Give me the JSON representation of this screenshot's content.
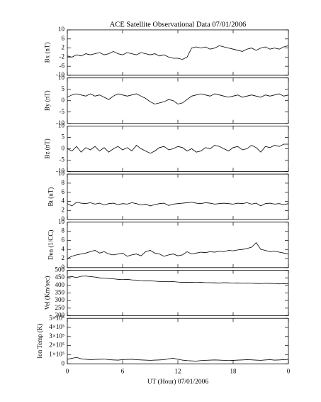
{
  "chart_data": [
    {
      "type": "line",
      "title": "ACE Satellite Observational Data   07/01/2006",
      "ylabel": "Bx (nT)",
      "color": "#000000",
      "x": [
        0,
        0.5,
        1,
        1.5,
        2,
        2.5,
        3,
        3.5,
        4,
        4.5,
        5,
        5.5,
        6,
        6.5,
        7,
        7.5,
        8,
        8.5,
        9,
        9.5,
        10,
        10.5,
        11,
        11.5,
        12,
        12.5,
        13,
        13.5,
        14,
        14.5,
        15,
        15.5,
        16,
        16.5,
        17,
        17.5,
        18,
        18.5,
        19,
        19.5,
        20,
        20.5,
        21,
        21.5,
        22,
        22.5,
        23,
        23.5,
        24
      ],
      "values": [
        -1.5,
        -2,
        -1,
        -1.5,
        -0.5,
        -1,
        -0.5,
        0,
        -1,
        -0.5,
        0.5,
        -0.5,
        -1,
        0,
        -0.5,
        -1,
        0,
        -0.5,
        -1,
        -0.5,
        -1.5,
        -1,
        -2,
        -2.5,
        -2.5,
        -3,
        -2,
        2,
        2.5,
        2,
        2.5,
        1.5,
        2,
        3,
        2.5,
        2,
        1.5,
        1,
        0.5,
        1.5,
        2,
        1,
        2,
        2.5,
        1.5,
        2,
        1.5,
        2.5,
        3
      ],
      "xlim": [
        0,
        24
      ],
      "ylim": [
        -10,
        10
      ],
      "yticks": [
        -10,
        -6,
        -2,
        2,
        6,
        10
      ]
    },
    {
      "type": "line",
      "ylabel": "By (nT)",
      "color": "#000000",
      "x": [
        0,
        0.5,
        1,
        1.5,
        2,
        2.5,
        3,
        3.5,
        4,
        4.5,
        5,
        5.5,
        6,
        6.5,
        7,
        7.5,
        8,
        8.5,
        9,
        9.5,
        10,
        10.5,
        11,
        11.5,
        12,
        12.5,
        13,
        13.5,
        14,
        14.5,
        15,
        15.5,
        16,
        16.5,
        17,
        17.5,
        18,
        18.5,
        19,
        19.5,
        20,
        20.5,
        21,
        21.5,
        22,
        22.5,
        23,
        23.5,
        24
      ],
      "values": [
        1.5,
        2.5,
        3,
        2.5,
        2,
        3,
        2,
        2.5,
        1.5,
        0.5,
        2,
        3,
        2.5,
        2,
        2.5,
        3,
        2,
        1,
        -0.5,
        -1.5,
        -1,
        -0.5,
        0.5,
        0,
        -1.5,
        -1,
        0.5,
        2,
        2.5,
        3,
        2.5,
        2,
        3,
        2.5,
        2,
        1.5,
        2,
        2.5,
        1.5,
        2,
        2.5,
        2,
        1.5,
        2.5,
        2,
        2.5,
        3,
        2,
        2.5
      ],
      "xlim": [
        0,
        24
      ],
      "ylim": [
        -10,
        10
      ],
      "yticks": [
        -10,
        -5,
        0,
        5,
        10
      ]
    },
    {
      "type": "line",
      "ylabel": "Bz (nT)",
      "color": "#000000",
      "x": [
        0,
        0.5,
        1,
        1.5,
        2,
        2.5,
        3,
        3.5,
        4,
        4.5,
        5,
        5.5,
        6,
        6.5,
        7,
        7.5,
        8,
        8.5,
        9,
        9.5,
        10,
        10.5,
        11,
        11.5,
        12,
        12.5,
        13,
        13.5,
        14,
        14.5,
        15,
        15.5,
        16,
        16.5,
        17,
        17.5,
        18,
        18.5,
        19,
        19.5,
        20,
        20.5,
        21,
        21.5,
        22,
        22.5,
        23,
        23.5,
        24
      ],
      "values": [
        0,
        -1,
        1,
        -1.5,
        0.5,
        -0.5,
        1,
        -1,
        0.5,
        -1.5,
        0,
        1,
        -0.5,
        0.5,
        -1,
        1.5,
        0,
        -1,
        -2,
        -1,
        0.5,
        1,
        -0.5,
        0,
        1,
        0.5,
        -1,
        0,
        -1.5,
        -1,
        0.5,
        0,
        1.5,
        1,
        0,
        -1,
        0.5,
        1,
        -0.5,
        0,
        1.5,
        0.5,
        -1.5,
        1,
        0.5,
        1.5,
        1,
        2,
        2
      ],
      "xlim": [
        0,
        24
      ],
      "ylim": [
        -10,
        10
      ],
      "yticks": [
        -10,
        -5,
        0,
        5,
        10
      ]
    },
    {
      "type": "line",
      "ylabel": "Bt (nT)",
      "color": "#000000",
      "x": [
        0,
        0.5,
        1,
        1.5,
        2,
        2.5,
        3,
        3.5,
        4,
        4.5,
        5,
        5.5,
        6,
        6.5,
        7,
        7.5,
        8,
        8.5,
        9,
        9.5,
        10,
        10.5,
        11,
        11.5,
        12,
        12.5,
        13,
        13.5,
        14,
        14.5,
        15,
        15.5,
        16,
        16.5,
        17,
        17.5,
        18,
        18.5,
        19,
        19.5,
        20,
        20.5,
        21,
        21.5,
        22,
        22.5,
        23,
        23.5,
        24
      ],
      "values": [
        3.5,
        3,
        3.8,
        3.6,
        3.5,
        3.7,
        3.4,
        3.6,
        3.2,
        3.5,
        3.6,
        3.3,
        3.5,
        3.4,
        3.7,
        3.5,
        3.2,
        3.4,
        3.0,
        3.3,
        3.5,
        3.6,
        3.1,
        3.4,
        3.5,
        3.6,
        3.7,
        3.8,
        3.6,
        3.5,
        3.7,
        3.6,
        3.4,
        3.5,
        3.6,
        3.5,
        3.4,
        3.6,
        3.5,
        3.7,
        3.4,
        3.6,
        3.0,
        3.5,
        3.6,
        3.4,
        3.5,
        3.3,
        3.5
      ],
      "xlim": [
        0,
        24
      ],
      "ylim": [
        0,
        10
      ],
      "yticks": [
        0,
        2,
        4,
        6,
        8,
        10
      ]
    },
    {
      "type": "line",
      "ylabel": "Den (1/CC)",
      "color": "#000000",
      "x": [
        0,
        0.5,
        1,
        1.5,
        2,
        2.5,
        3,
        3.5,
        4,
        4.5,
        5,
        5.5,
        6,
        6.5,
        7,
        7.5,
        8,
        8.5,
        9,
        9.5,
        10,
        10.5,
        11,
        11.5,
        12,
        12.5,
        13,
        13.5,
        14,
        14.5,
        15,
        15.5,
        16,
        16.5,
        17,
        17.5,
        18,
        18.5,
        19,
        19.5,
        20,
        20.5,
        21,
        21.5,
        22,
        22.5,
        23,
        23.5,
        24
      ],
      "values": [
        2.0,
        2.5,
        2.8,
        3.0,
        3.2,
        3.5,
        3.8,
        3.2,
        3.5,
        3.0,
        2.8,
        3.0,
        3.2,
        2.5,
        2.8,
        3.0,
        2.6,
        3.5,
        3.8,
        3.2,
        3.0,
        2.5,
        2.8,
        3.0,
        2.6,
        2.8,
        3.5,
        3.0,
        3.2,
        3.4,
        3.3,
        3.5,
        3.4,
        3.6,
        3.5,
        3.8,
        3.7,
        3.9,
        4.0,
        4.2,
        4.5,
        5.5,
        4.0,
        3.8,
        3.5,
        3.6,
        3.4,
        3.2,
        3.0
      ],
      "xlim": [
        0,
        24
      ],
      "ylim": [
        0,
        10
      ],
      "yticks": [
        0,
        2,
        4,
        6,
        8,
        10
      ]
    },
    {
      "type": "line",
      "ylabel": "Vel (Km/sec)",
      "color": "#000000",
      "x": [
        0,
        0.5,
        1,
        1.5,
        2,
        2.5,
        3,
        3.5,
        4,
        4.5,
        5,
        5.5,
        6,
        6.5,
        7,
        7.5,
        8,
        8.5,
        9,
        9.5,
        10,
        10.5,
        11,
        11.5,
        12,
        12.5,
        13,
        13.5,
        14,
        14.5,
        15,
        15.5,
        16,
        16.5,
        17,
        17.5,
        18,
        18.5,
        19,
        19.5,
        20,
        20.5,
        21,
        21.5,
        22,
        22.5,
        23,
        23.5,
        24
      ],
      "values": [
        455,
        458,
        452,
        460,
        462,
        458,
        455,
        450,
        448,
        445,
        443,
        440,
        438,
        440,
        436,
        435,
        432,
        430,
        430,
        428,
        426,
        425,
        424,
        425,
        422,
        420,
        421,
        420,
        419,
        420,
        418,
        418,
        417,
        416,
        418,
        417,
        415,
        416,
        414,
        415,
        414,
        413,
        412,
        414,
        413,
        412,
        410,
        411,
        410
      ],
      "xlim": [
        0,
        24
      ],
      "ylim": [
        200,
        500
      ],
      "yticks": [
        200,
        250,
        300,
        350,
        400,
        450,
        500
      ]
    },
    {
      "type": "line",
      "ylabel": "Ion Temp (K)",
      "xlabel": "UT (Hour)   07/01/2006",
      "color": "#000000",
      "x": [
        0,
        0.5,
        1,
        1.5,
        2,
        2.5,
        3,
        3.5,
        4,
        4.5,
        5,
        5.5,
        6,
        6.5,
        7,
        7.5,
        8,
        8.5,
        9,
        9.5,
        10,
        10.5,
        11,
        11.5,
        12,
        12.5,
        13,
        13.5,
        14,
        14.5,
        15,
        15.5,
        16,
        16.5,
        17,
        17.5,
        18,
        18.5,
        19,
        19.5,
        20,
        20.5,
        21,
        21.5,
        22,
        22.5,
        23,
        23.5,
        24
      ],
      "values": [
        50000,
        60000,
        70000,
        55000,
        50000,
        45000,
        48000,
        50000,
        52000,
        45000,
        42000,
        40000,
        45000,
        48000,
        50000,
        45000,
        42000,
        40000,
        38000,
        40000,
        42000,
        45000,
        55000,
        60000,
        50000,
        40000,
        35000,
        32000,
        30000,
        35000,
        38000,
        40000,
        42000,
        40000,
        38000,
        35000,
        37000,
        40000,
        42000,
        45000,
        43000,
        40000,
        38000,
        42000,
        45000,
        40000,
        42000,
        45000,
        48000
      ],
      "xlim": [
        0,
        24
      ],
      "ylim": [
        0,
        500000
      ],
      "yticks": [
        0,
        {
          "value": 100000,
          "label": "1×10⁵"
        },
        {
          "value": 200000,
          "label": "2×10⁵"
        },
        {
          "value": 300000,
          "label": "3×10⁵"
        },
        {
          "value": 400000,
          "label": "4×10⁵"
        },
        {
          "value": 500000,
          "label": "5×10⁵"
        }
      ],
      "xticks": [
        0,
        6,
        12,
        18,
        {
          "value": 24,
          "label": "0"
        }
      ]
    }
  ]
}
